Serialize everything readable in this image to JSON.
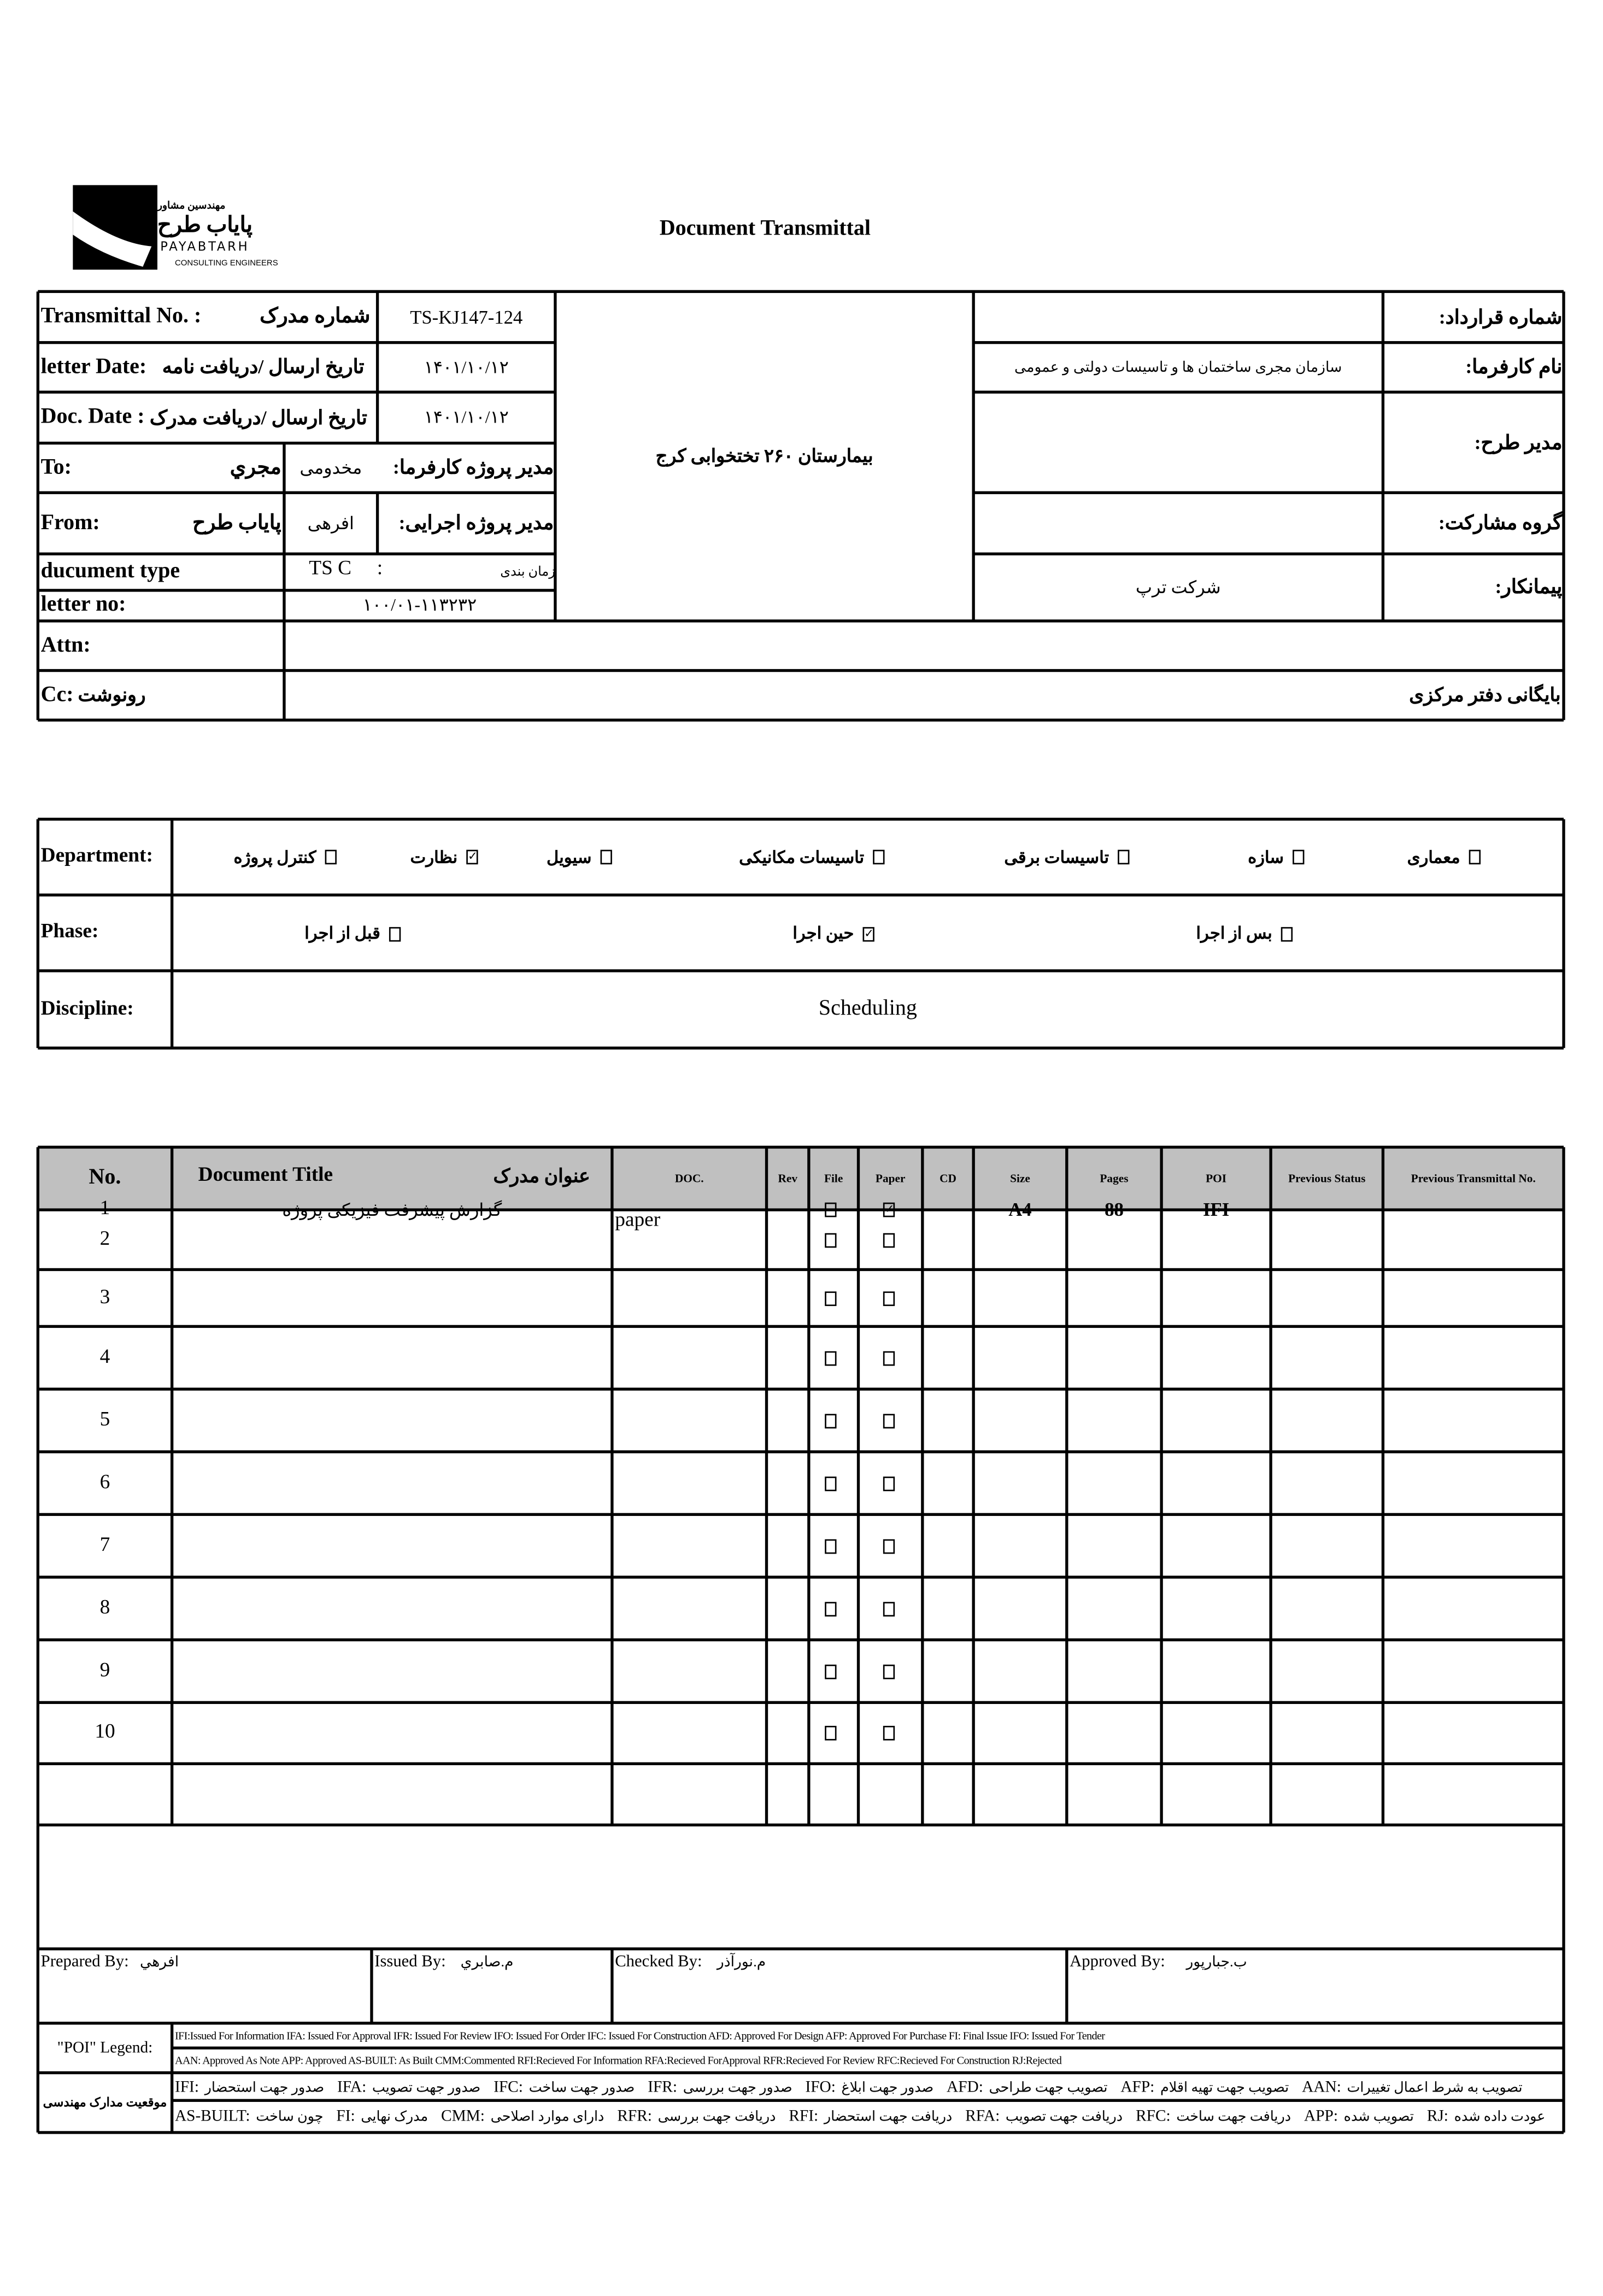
{
  "header": {
    "title": "Document Transmittal",
    "logo": {
      "fa_top": "مهندسین مشاور",
      "fa_name": "پایاب طرح",
      "en_name": "PAYABTARH",
      "en_sub": "CONSULTING ENGINEERS"
    }
  },
  "info": {
    "transmittal_no_label_en": "Transmittal No. :",
    "transmittal_no_label_fa": "شماره مدرک",
    "transmittal_no": "TS-KJ147-124",
    "letter_date_label_en": "letter Date:",
    "letter_date_label_fa": "تاریخ ارسال /دریافت نامه",
    "letter_date": "۱۴۰۱/۱۰/۱۲",
    "doc_date_label_en": "Doc. Date :",
    "doc_date_label_fa": "تاریخ ارسال /دریافت مدرک",
    "doc_date": "۱۴۰۱/۱۰/۱۲",
    "to_label": "To:",
    "to_value": "مجري",
    "to_person": "مخدومی",
    "to_role": "مدیر پروژه کارفرما:",
    "from_label": "From:",
    "from_value": "پایاب طرح",
    "from_person": "افرهی",
    "from_role": "مدیر پروژه اجرایی:",
    "doc_type_label": "ducument type",
    "doc_type_value": "TS C     :",
    "doc_type_fa": "زمان بندی",
    "letter_no_label": "letter no:",
    "letter_no": "۱۰۰/۰۱-۱۱۳۲۳۲",
    "project": "بیمارستان ۲۶۰ تختخوابی کرج",
    "contract_no_label": "شماره قرارداد:",
    "employer_label": "نام کارفرما:",
    "employer": "سازمان مجری ساختمان ها و تاسیسات دولتی و عمومی",
    "plan_manager_label": "مدیر طرح:",
    "partnership_label": "گروه مشارکت:",
    "contractor_label": "پیمانکار:",
    "contractor": "شرکت ترپ",
    "attn_label": "Attn:",
    "cc_label": "Cc:",
    "cc_label_fa": "رونوشت",
    "cc_value": "بایگانی دفتر مرکزی"
  },
  "classification": {
    "department_label": "Department:",
    "departments": [
      {
        "label": "معماری",
        "checked": false
      },
      {
        "label": "سازه",
        "checked": false
      },
      {
        "label": "تاسیسات برقی",
        "checked": false
      },
      {
        "label": "تاسیسات مکانیکی",
        "checked": false
      },
      {
        "label": "سیویل",
        "checked": false
      },
      {
        "label": "نظارت",
        "checked": true
      },
      {
        "label": "کنترل پروژه",
        "checked": false
      }
    ],
    "phase_label": "Phase:",
    "phases": [
      {
        "label": "بس از اجرا",
        "checked": false
      },
      {
        "label": "حین اجرا",
        "checked": true
      },
      {
        "label": "قبل از اجرا",
        "checked": false
      }
    ],
    "discipline_label": "Discipline:",
    "discipline": "Scheduling"
  },
  "documents": {
    "columns": {
      "no": "No.",
      "title_en": "Document Title",
      "title_fa": "عنوان مدرک",
      "doc": "DOC.",
      "rev": "Rev",
      "file": "File",
      "paper": "Paper",
      "cd": "CD",
      "size": "Size",
      "pages": "Pages",
      "poi": "POI",
      "prev_status": "Previous Status",
      "prev_transmittal": "Previous Transmittal No."
    },
    "rows": [
      {
        "no": "1",
        "title": "گزارش پیشرفت فیزیکی پروژه",
        "doc": "paper",
        "rev": "",
        "file": false,
        "paper": true,
        "cd": "",
        "size": "A4",
        "pages": "88",
        "poi": "IFI",
        "prev_status": "",
        "prev_transmittal": ""
      },
      {
        "no": "2",
        "title": "",
        "doc": "",
        "rev": "",
        "file": false,
        "paper": false,
        "cd": "",
        "size": "",
        "pages": "",
        "poi": "",
        "prev_status": "",
        "prev_transmittal": ""
      },
      {
        "no": "3",
        "title": "",
        "doc": "",
        "rev": "",
        "file": false,
        "paper": false,
        "cd": "",
        "size": "",
        "pages": "",
        "poi": "",
        "prev_status": "",
        "prev_transmittal": ""
      },
      {
        "no": "4",
        "title": "",
        "doc": "",
        "rev": "",
        "file": false,
        "paper": false,
        "cd": "",
        "size": "",
        "pages": "",
        "poi": "",
        "prev_status": "",
        "prev_transmittal": ""
      },
      {
        "no": "5",
        "title": "",
        "doc": "",
        "rev": "",
        "file": false,
        "paper": false,
        "cd": "",
        "size": "",
        "pages": "",
        "poi": "",
        "prev_status": "",
        "prev_transmittal": ""
      },
      {
        "no": "6",
        "title": "",
        "doc": "",
        "rev": "",
        "file": false,
        "paper": false,
        "cd": "",
        "size": "",
        "pages": "",
        "poi": "",
        "prev_status": "",
        "prev_transmittal": ""
      },
      {
        "no": "7",
        "title": "",
        "doc": "",
        "rev": "",
        "file": false,
        "paper": false,
        "cd": "",
        "size": "",
        "pages": "",
        "poi": "",
        "prev_status": "",
        "prev_transmittal": ""
      },
      {
        "no": "8",
        "title": "",
        "doc": "",
        "rev": "",
        "file": false,
        "paper": false,
        "cd": "",
        "size": "",
        "pages": "",
        "poi": "",
        "prev_status": "",
        "prev_transmittal": ""
      },
      {
        "no": "9",
        "title": "",
        "doc": "",
        "rev": "",
        "file": false,
        "paper": false,
        "cd": "",
        "size": "",
        "pages": "",
        "poi": "",
        "prev_status": "",
        "prev_transmittal": ""
      },
      {
        "no": "10",
        "title": "",
        "doc": "",
        "rev": "",
        "file": false,
        "paper": false,
        "cd": "",
        "size": "",
        "pages": "",
        "poi": "",
        "prev_status": "",
        "prev_transmittal": ""
      }
    ]
  },
  "signatures": {
    "prepared_label": "Prepared By:",
    "prepared_value": "افرهي",
    "issued_label": "Issued By:",
    "issued_value": "م.صابري",
    "checked_label": "Checked By:",
    "checked_value": "م.نورآذر",
    "approved_label": "Approved By:",
    "approved_value": "ب.جبارپور"
  },
  "legend": {
    "poi_label": "\"POI\" Legend:",
    "line1": "IFI:Issued For Information  IFA: Issued For Approval  IFR: Issued For Review   IFO: Issued For Order  IFC: Issued For Construction AFD: Approved For Design AFP: Approved For Purchase  FI: Final Issue  IFO: Issued For Tender",
    "line2": "AAN: Approved As Note  APP: Approved  AS-BUILT: As Built CMM:Commented  RFI:Recieved For Information   RFA:Recieved ForApproval   RFR:Recieved For Review  RFC:Recieved For Construction  RJ:Rejected",
    "fa_label": "موقعیت مدارک مهندسی",
    "fa_row1": [
      {
        "code": "IFI:",
        "fa": "صدور جهت استحضار"
      },
      {
        "code": "IFA:",
        "fa": "صدور جهت تصویب"
      },
      {
        "code": "IFC:",
        "fa": "صدور جهت ساخت"
      },
      {
        "code": "IFR:",
        "fa": "صدور جهت بررسی"
      },
      {
        "code": "IFO:",
        "fa": "صدور جهت ابلاغ"
      },
      {
        "code": "AFD:",
        "fa": "تصویب جهت طراحی"
      },
      {
        "code": "AFP:",
        "fa": "تصویب جهت تهیه اقلام"
      },
      {
        "code": "AAN:",
        "fa": "تصویب به شرط اعمال تغییرات"
      }
    ],
    "fa_row2": [
      {
        "code": "AS-BUILT:",
        "fa": "چون ساخت"
      },
      {
        "code": "FI:",
        "fa": "مدرک نهایی"
      },
      {
        "code": "CMM:",
        "fa": "دارای موارد اصلاحی"
      },
      {
        "code": "RFR:",
        "fa": "دریافت جهت بررسی"
      },
      {
        "code": "RFI:",
        "fa": "دریافت جهت استحضار"
      },
      {
        "code": "RFA:",
        "fa": "دریافت جهت تصویب"
      },
      {
        "code": "RFC:",
        "fa": "دریافت جهت ساخت"
      },
      {
        "code": "APP:",
        "fa": "تصویب شده"
      },
      {
        "code": "RJ:",
        "fa": "عودت داده شده"
      }
    ]
  }
}
